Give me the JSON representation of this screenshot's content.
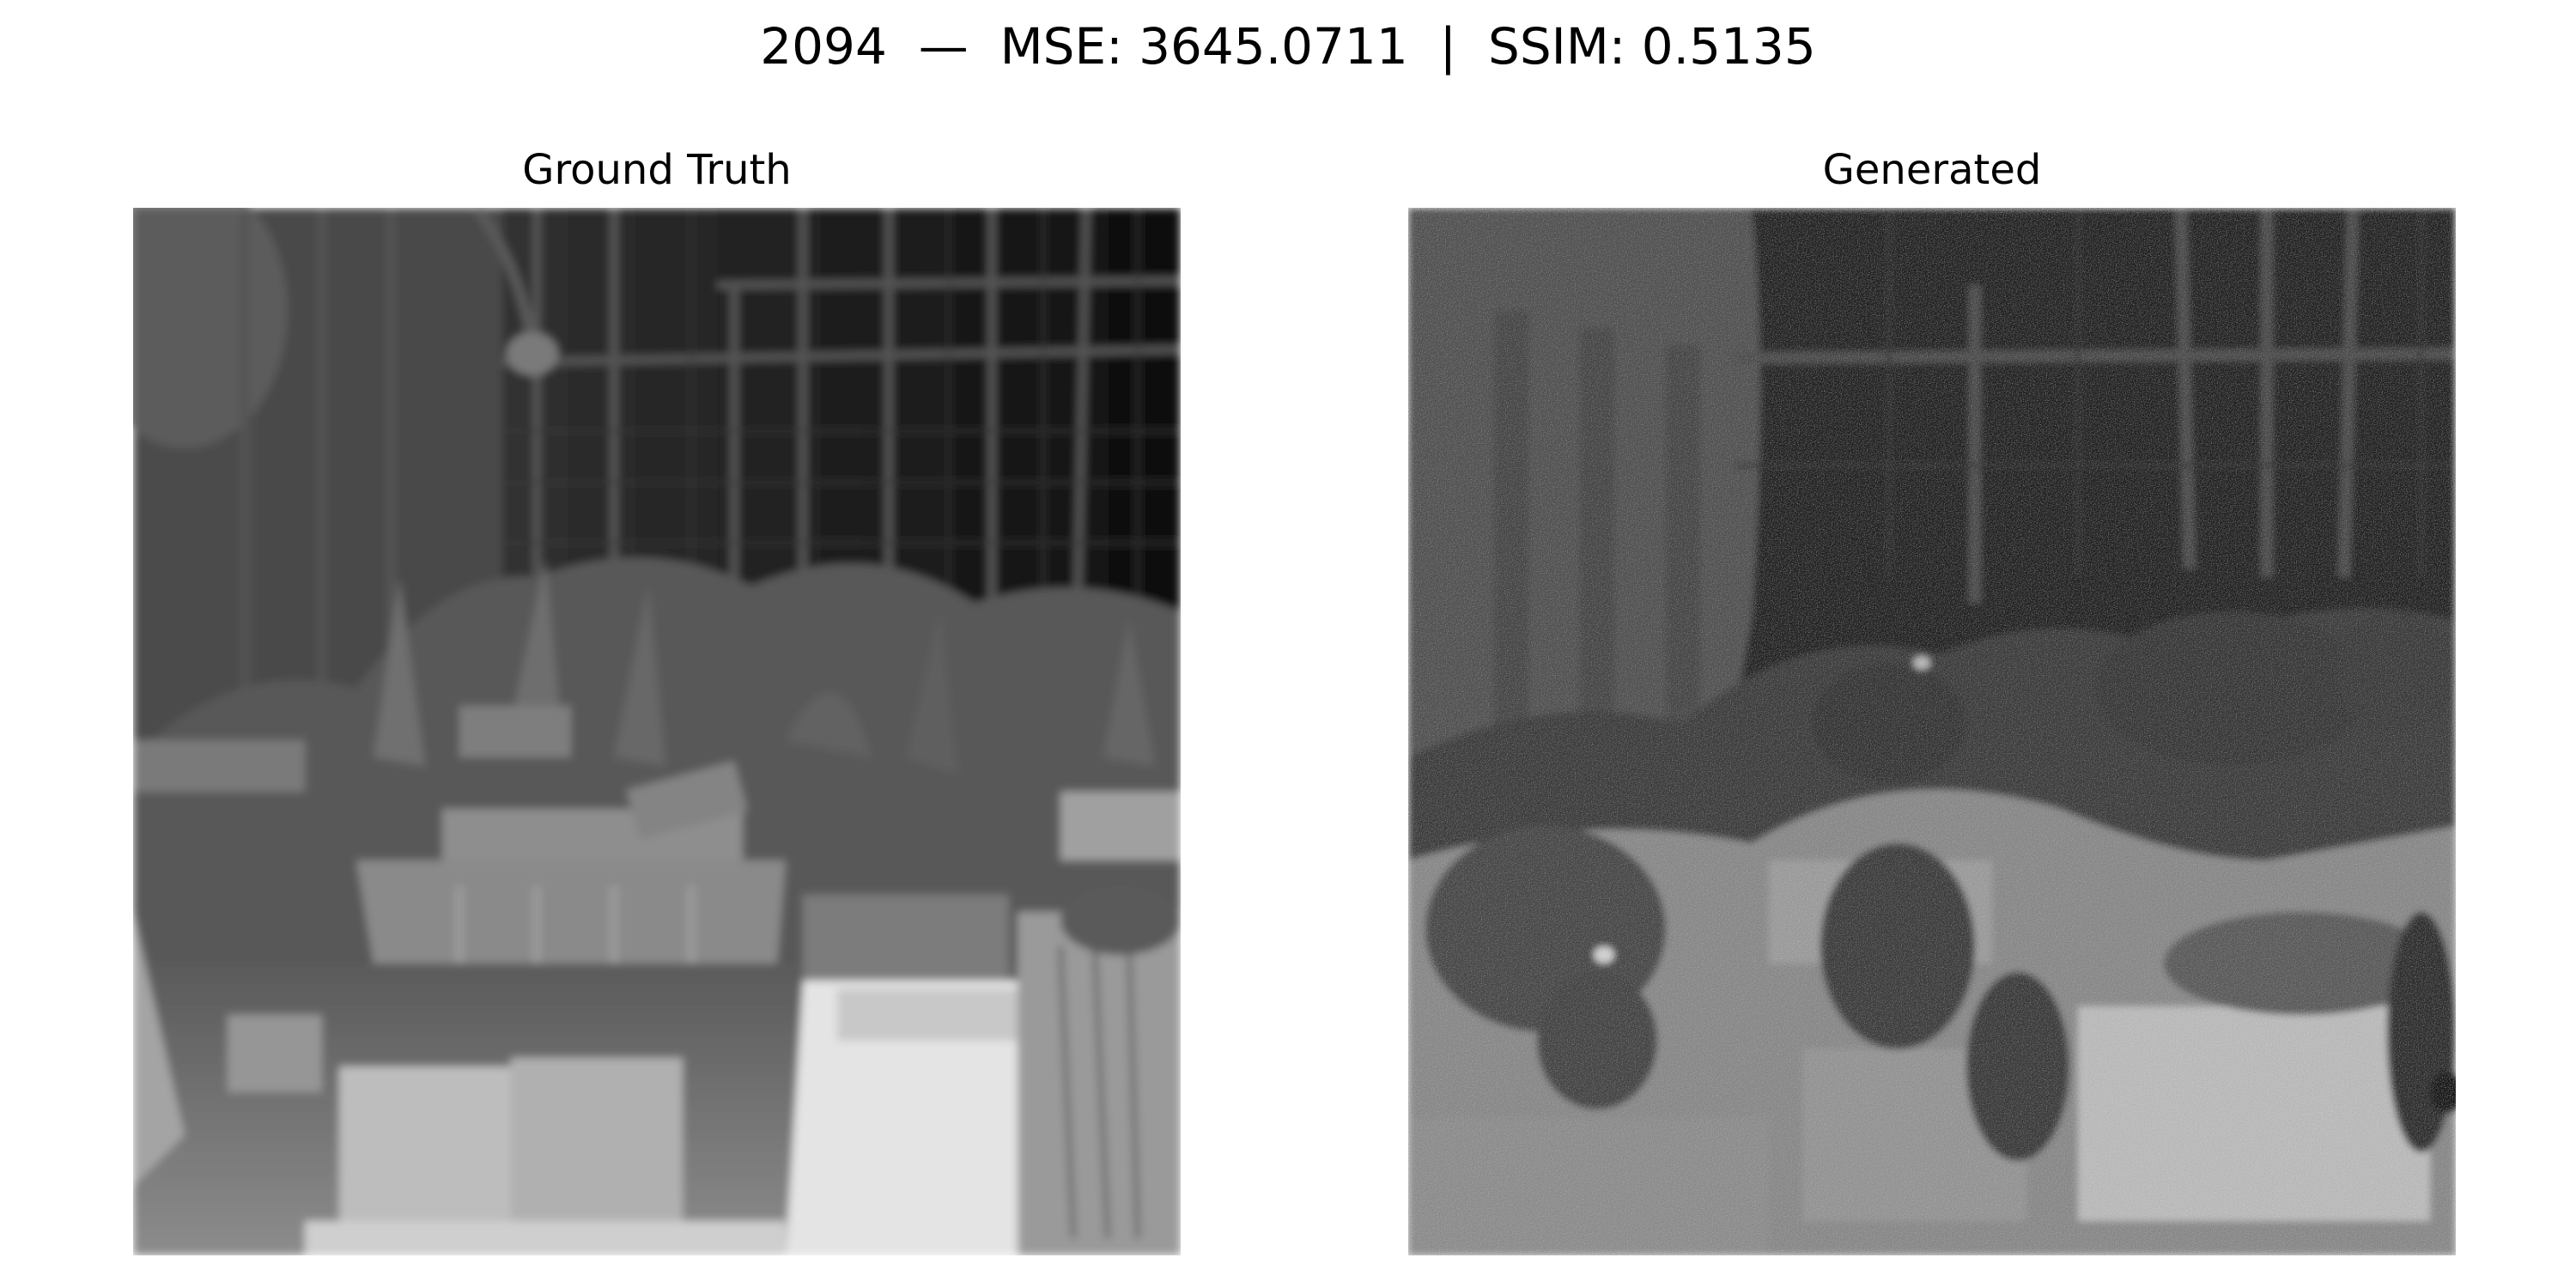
{
  "figure": {
    "suptitle": "2094  —  MSE: 3645.0711  |  SSIM: 0.5135"
  },
  "panels": [
    {
      "title": "Ground Truth"
    },
    {
      "title": "Generated"
    }
  ]
}
